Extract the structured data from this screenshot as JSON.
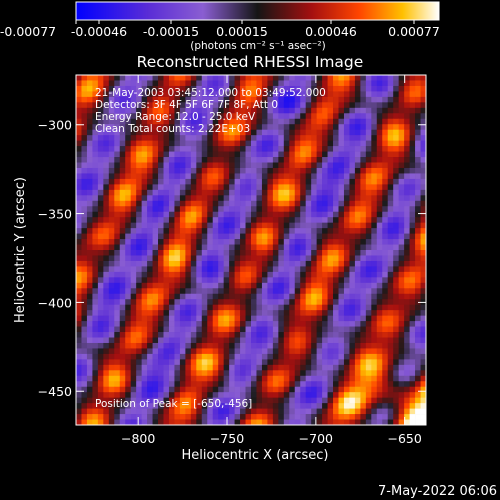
{
  "colorbar": {
    "ticks": [
      "-0.00077",
      "-0.00046",
      "-0.00015",
      "0.00015",
      "0.00046",
      "0.00077"
    ],
    "unit_label": "(photons cm⁻² s⁻¹ asec⁻²)",
    "range": [
      -0.00077,
      0.00077
    ]
  },
  "chart_data": {
    "type": "heatmap",
    "title": "Reconstructed RHESSI Image",
    "xlabel": "Heliocentric X (arcsec)",
    "ylabel": "Heliocentric Y (arcsec)",
    "xlim": [
      -835,
      -638
    ],
    "ylim": [
      -469,
      -272
    ],
    "xticks": [
      -800,
      -750,
      -700,
      -650
    ],
    "yticks": [
      -300,
      -350,
      -400,
      -450
    ],
    "xtick_labels": [
      "−800",
      "−750",
      "−700",
      "−650"
    ],
    "ytick_labels": [
      "−300",
      "−350",
      "−400",
      "−450"
    ],
    "colormap": [
      "#0000ff",
      "#5a2dd6",
      "#8a5ed2",
      "#1a1a1a",
      "#a51010",
      "#ff4500",
      "#ffc000",
      "#ffffff"
    ],
    "annotations": [
      "21-May-2003 03:45:12.000 to 03:49:52.000",
      "Detectors: 3F 4F 5F 6F 7F 8F, Att 0",
      "Energy Range: 12.0 - 25.0 keV",
      "Clean    Total counts: 2.22E+03"
    ],
    "peak_label": "Position of Peak = [-650,-456]",
    "peak": [
      -650,
      -456
    ],
    "stripe_orientation": "diagonal, lower-left to upper-right"
  },
  "timestamp": "7-May-2022 06:06"
}
